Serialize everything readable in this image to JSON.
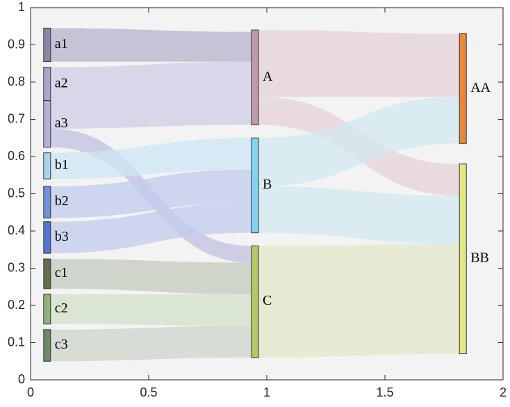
{
  "chart_data": {
    "type": "sankey",
    "title": "",
    "xlabel": "",
    "ylabel": "",
    "xlim": [
      0,
      2
    ],
    "ylim": [
      0,
      1
    ],
    "xticks": [
      "0",
      "0.5",
      "1",
      "1.5",
      "2"
    ],
    "yticks": [
      "0",
      "0.1",
      "0.2",
      "0.3",
      "0.4",
      "0.5",
      "0.6",
      "0.7",
      "0.8",
      "0.9",
      "1"
    ],
    "background": "#f3f3f3",
    "nodes": [
      {
        "id": "a1",
        "label": "a1",
        "x": 0.07,
        "y0": 0.855,
        "y1": 0.945,
        "color": "#8a87a6"
      },
      {
        "id": "a2",
        "label": "a2",
        "x": 0.07,
        "y0": 0.75,
        "y1": 0.84,
        "color": "#a8a6cc"
      },
      {
        "id": "a3",
        "label": "a3",
        "x": 0.07,
        "y0": 0.625,
        "y1": 0.75,
        "color": "#b4b2dc"
      },
      {
        "id": "b1",
        "label": "b1",
        "x": 0.07,
        "y0": 0.54,
        "y1": 0.61,
        "color": "#a9d4f0"
      },
      {
        "id": "b2",
        "label": "b2",
        "x": 0.07,
        "y0": 0.435,
        "y1": 0.52,
        "color": "#6f92d8"
      },
      {
        "id": "b3",
        "label": "b3",
        "x": 0.07,
        "y0": 0.34,
        "y1": 0.425,
        "color": "#5576cc"
      },
      {
        "id": "c1",
        "label": "c1",
        "x": 0.07,
        "y0": 0.245,
        "y1": 0.325,
        "color": "#5f7050"
      },
      {
        "id": "c2",
        "label": "c2",
        "x": 0.07,
        "y0": 0.15,
        "y1": 0.23,
        "color": "#94b07a"
      },
      {
        "id": "c3",
        "label": "c3",
        "x": 0.07,
        "y0": 0.05,
        "y1": 0.135,
        "color": "#6d8a6a"
      },
      {
        "id": "A",
        "label": "A",
        "x": 0.95,
        "y0": 0.685,
        "y1": 0.94,
        "color": "#c19aab"
      },
      {
        "id": "B",
        "label": "B",
        "x": 0.95,
        "y0": 0.395,
        "y1": 0.65,
        "color": "#82d4f2"
      },
      {
        "id": "C",
        "label": "C",
        "x": 0.95,
        "y0": 0.06,
        "y1": 0.36,
        "color": "#b6c868"
      },
      {
        "id": "AA",
        "label": "AA",
        "x": 1.83,
        "y0": 0.635,
        "y1": 0.93,
        "color": "#e8883a"
      },
      {
        "id": "BB",
        "label": "BB",
        "x": 1.83,
        "y0": 0.07,
        "y1": 0.58,
        "color": "#e4e884"
      }
    ],
    "links": [
      {
        "source": "a1",
        "target": "A",
        "s0": 0.855,
        "s1": 0.945,
        "t0": 0.855,
        "t1": 0.935,
        "color": "#b6b4cc"
      },
      {
        "source": "a2",
        "target": "A",
        "s0": 0.75,
        "s1": 0.84,
        "t0": 0.775,
        "t1": 0.855,
        "color": "#cfcde6"
      },
      {
        "source": "a3",
        "target": "A",
        "s0": 0.675,
        "s1": 0.75,
        "t0": 0.685,
        "t1": 0.775,
        "color": "#cfcde6"
      },
      {
        "source": "a3",
        "target": "C",
        "s0": 0.625,
        "s1": 0.675,
        "t0": 0.315,
        "t1": 0.36,
        "color": "#c0c2e2"
      },
      {
        "source": "b1",
        "target": "B",
        "s0": 0.54,
        "s1": 0.61,
        "t0": 0.565,
        "t1": 0.65,
        "color": "#cce6f4"
      },
      {
        "source": "b2",
        "target": "B",
        "s0": 0.435,
        "s1": 0.52,
        "t0": 0.475,
        "t1": 0.565,
        "color": "#c2cbee"
      },
      {
        "source": "b3",
        "target": "B",
        "s0": 0.34,
        "s1": 0.425,
        "t0": 0.395,
        "t1": 0.475,
        "color": "#c2cbee"
      },
      {
        "source": "c1",
        "target": "C",
        "s0": 0.245,
        "s1": 0.325,
        "t0": 0.23,
        "t1": 0.315,
        "color": "#c4cbbd"
      },
      {
        "source": "c2",
        "target": "C",
        "s0": 0.15,
        "s1": 0.23,
        "t0": 0.145,
        "t1": 0.23,
        "color": "#d2e0c8"
      },
      {
        "source": "c3",
        "target": "C",
        "s0": 0.05,
        "s1": 0.135,
        "t0": 0.06,
        "t1": 0.145,
        "color": "#cdd6cb"
      },
      {
        "source": "A",
        "target": "AA",
        "s0": 0.76,
        "s1": 0.94,
        "t0": 0.76,
        "t1": 0.93,
        "color": "#e6d2da"
      },
      {
        "source": "A",
        "target": "BB",
        "s0": 0.685,
        "s1": 0.76,
        "t0": 0.495,
        "t1": 0.58,
        "color": "#e6d2da"
      },
      {
        "source": "B",
        "target": "AA",
        "s0": 0.52,
        "s1": 0.65,
        "t0": 0.635,
        "t1": 0.76,
        "color": "#d2e8f2"
      },
      {
        "source": "B",
        "target": "BB",
        "s0": 0.395,
        "s1": 0.52,
        "t0": 0.365,
        "t1": 0.495,
        "color": "#d2e8f2"
      },
      {
        "source": "C",
        "target": "BB",
        "s0": 0.06,
        "s1": 0.36,
        "t0": 0.07,
        "t1": 0.365,
        "color": "#e4e8c8"
      }
    ]
  }
}
